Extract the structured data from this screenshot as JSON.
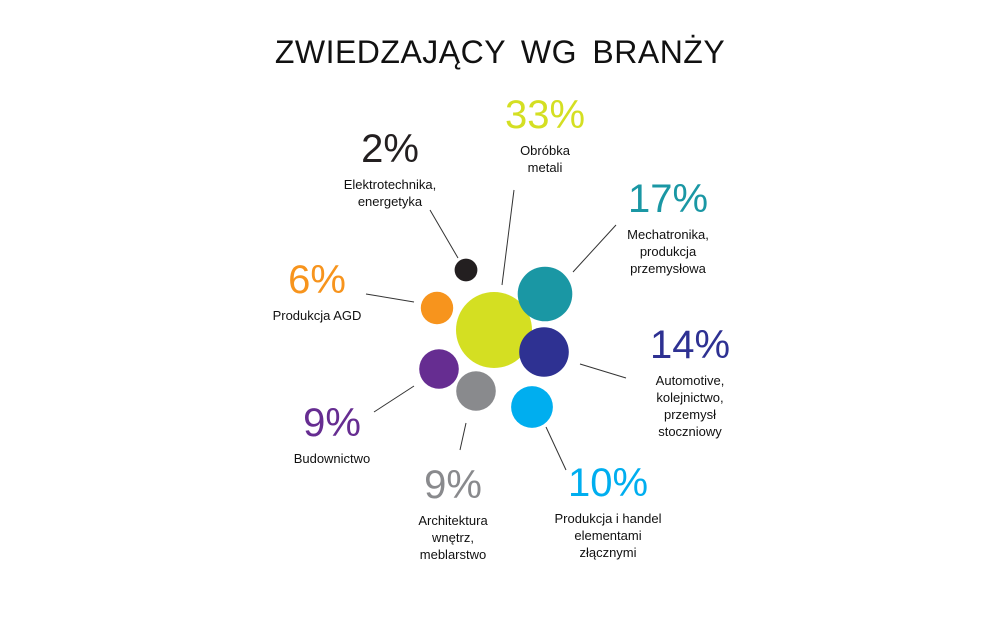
{
  "chart_data": {
    "type": "bubble",
    "title": "ZWIEDZAJĄCY  WG BRANŻY",
    "series": [
      {
        "value": 33,
        "value_label": "33%",
        "label_lines": [
          "Obróbka",
          "metali"
        ],
        "color": "#d4df22"
      },
      {
        "value": 17,
        "value_label": "17%",
        "label_lines": [
          "Mechatronika,",
          "produkcja",
          "przemysłowa"
        ],
        "color": "#1a97a4"
      },
      {
        "value": 14,
        "value_label": "14%",
        "label_lines": [
          "Automotive,",
          "kolejnictwo,",
          "przemysł",
          "stoczniowy"
        ],
        "color": "#2e3192"
      },
      {
        "value": 10,
        "value_label": "10%",
        "label_lines": [
          "Produkcja i handel",
          "elementami",
          "złącznymi"
        ],
        "color": "#00aeef"
      },
      {
        "value": 9,
        "value_label": "9%",
        "label_lines": [
          "Architektura",
          "wnętrz,",
          "meblarstwo"
        ],
        "color": "#898a8d"
      },
      {
        "value": 9,
        "value_label": "9%",
        "label_lines": [
          "Budownictwo"
        ],
        "color": "#662d91"
      },
      {
        "value": 6,
        "value_label": "6%",
        "label_lines": [
          "Produkcja AGD"
        ],
        "color": "#f7941d"
      },
      {
        "value": 2,
        "value_label": "2%",
        "label_lines": [
          "Elektrotechnika,",
          "energetyka"
        ],
        "color": "#231f20"
      }
    ]
  }
}
